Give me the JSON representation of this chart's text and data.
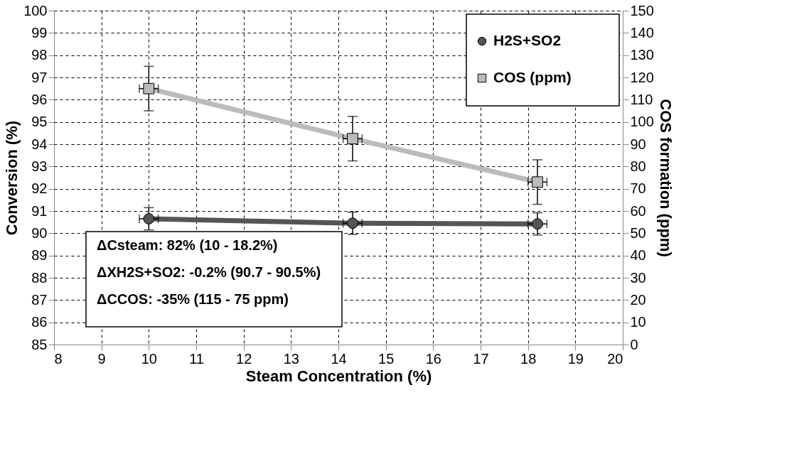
{
  "chart_data": {
    "type": "line",
    "xlabel": "Steam Concentration (%)",
    "ylabel": "Conversion (%)",
    "y2label": "COS formation (ppm)",
    "series": [
      {
        "name": "H2S+SO2",
        "color": "#555555",
        "marker": "circle",
        "x": [
          10,
          14.3,
          18.2
        ],
        "values": [
          90.65,
          90.45,
          90.42
        ],
        "errors": [
          0.5,
          0.5,
          0.5
        ],
        "xerrors": [
          0.2,
          0.2,
          0.2
        ]
      },
      {
        "name": "COS (ppm)",
        "color": "#bbbbbb",
        "marker": "square",
        "axis": "y2",
        "x": [
          10,
          14.3,
          18.2
        ],
        "values": [
          115,
          92.5,
          73
        ],
        "errors": [
          10,
          10,
          10
        ],
        "xerrors": [
          0.2,
          0.2,
          0.2
        ]
      }
    ],
    "xlim": [
      8,
      20
    ],
    "xticks": [
      8,
      9,
      10,
      11,
      12,
      13,
      14,
      15,
      16,
      17,
      18,
      19,
      20
    ],
    "ylim": [
      85,
      100
    ],
    "yticks": [
      85,
      86,
      87,
      88,
      89,
      90,
      91,
      92,
      93,
      94,
      95,
      96,
      97,
      98,
      99,
      100
    ],
    "y2lim": [
      0,
      150
    ],
    "y2ticks": [
      0,
      10,
      20,
      30,
      40,
      50,
      60,
      70,
      80,
      90,
      100,
      110,
      120,
      130,
      140,
      150
    ],
    "annotations": [
      "ΔCsteam: 82% (10 - 18.2%)",
      "ΔXH2S+SO2: -0.2% (90.7 - 90.5%)",
      "ΔCCOS: -35% (115 - 75 ppm)"
    ],
    "grid": true,
    "legend": "top right",
    "line_style": "solid"
  }
}
